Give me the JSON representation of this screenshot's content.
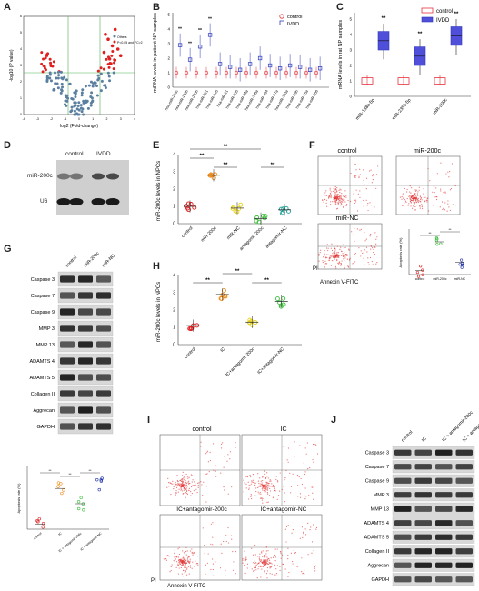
{
  "panels": {
    "A": {
      "letter": "A",
      "xlabel": "log2 (Fold-change)",
      "ylabel": "-log10 (P value)",
      "legend": [
        "Others",
        "P<0.05 and FC>2"
      ],
      "xticks": [
        "-4",
        "-3",
        "-2",
        "-1",
        "0",
        "1",
        "2",
        "3",
        "4"
      ],
      "yticks": [
        "0",
        "1",
        "2",
        "3",
        "4",
        "5",
        "6"
      ]
    },
    "B": {
      "letter": "B",
      "ylabel": "miRNA levels in patient NP samples",
      "legend": [
        "control",
        "IVDD"
      ],
      "yticks": [
        "0",
        "1",
        "2",
        "3",
        "4",
        "5"
      ],
      "categories": [
        "hsa-miR-200c",
        "hsa-miR-138b",
        "hsa-miR-235b",
        "hsa-miR-221",
        "hsa-miR-145",
        "hsa-miR-21",
        "hsa-miR-155",
        "hsa-miR-34a",
        "hsa-miR-146a",
        "hsa-miR-494",
        "hsa-miR-27a",
        "hsa-miR-133a",
        "hsa-miR-29b",
        "hsa-miR-15a",
        "hsa-miR-206"
      ],
      "stars": "**"
    },
    "C": {
      "letter": "C",
      "ylabel": "mRNA levels in rat NP samples",
      "legend": [
        "control",
        "IVDD"
      ],
      "categories": [
        "miR-138b-5p",
        "miR-2355-5p",
        "miR-200c"
      ],
      "yticks": [
        "0",
        "1",
        "2",
        "3",
        "4",
        "5"
      ],
      "stars": "**"
    },
    "D": {
      "letter": "D",
      "lanes": [
        "control",
        "IVDD"
      ],
      "rows": [
        "miR-200c",
        "U6"
      ]
    },
    "E": {
      "letter": "E",
      "ylabel": "miR-200c levels in NPCs",
      "categories": [
        "control",
        "miR-200c",
        "miR-NC",
        "antagomir-200c",
        "antagomir-NC"
      ],
      "yticks": [
        "0",
        "1",
        "2",
        "3",
        "4"
      ],
      "stars": "**"
    },
    "F": {
      "letter": "F",
      "titles": [
        "control",
        "miR-200c",
        "miR-NC"
      ],
      "xlabel": "Annexin V-FITC",
      "ylabel": "PI",
      "inset_ylabel": "Apoptosis rate (%)",
      "inset_categories": [
        "control",
        "miR-200c",
        "miR-NC"
      ],
      "stars": "**"
    },
    "G": {
      "letter": "G",
      "lanes": [
        "control",
        "miR-200c",
        "miR-NC"
      ],
      "rows": [
        "Caspase 3",
        "Caspase 7",
        "Caspase 9",
        "MMP 3",
        "MMP 13",
        "ADAMTS 4",
        "ADAMTS 5",
        "Collagen II",
        "Aggrecan",
        "GAPDH"
      ],
      "inset_ylabel": "Apoptosis rate (%)",
      "inset_categories": [
        "control",
        "IC",
        "IC + antagomir-200c",
        "IC + antagomir-NC"
      ],
      "stars": "**"
    },
    "H": {
      "letter": "H",
      "ylabel": "miR-200c levels in NPCs",
      "categories": [
        "control",
        "IC",
        "IC+antagomir-200c",
        "IC+antagomir-NC"
      ],
      "yticks": [
        "0",
        "1",
        "2",
        "3",
        "4"
      ],
      "stars": "**"
    },
    "I": {
      "letter": "I",
      "titles": [
        "control",
        "IC",
        "IC+antagomir-200c",
        "IC+antagomir-NC"
      ],
      "xlabel": "Annexin V-FITC",
      "ylabel": "PI"
    },
    "J": {
      "letter": "J",
      "lanes": [
        "control",
        "IC",
        "IC + antagomir-200c",
        "IC + antagomir-NC"
      ],
      "rows": [
        "Caspase 3",
        "Caspase 7",
        "Caspase 9",
        "MMP 3",
        "MMP 13",
        "ADAMTS 4",
        "ADAMTS 5",
        "Collagen II",
        "Aggrecan",
        "GAPDH"
      ]
    }
  },
  "chart_data": [
    {
      "type": "bar",
      "panel": "C",
      "categories": [
        "miR-138b-5p",
        "miR-2355-5p",
        "miR-200c"
      ],
      "series": [
        {
          "name": "control",
          "values": [
            1.0,
            1.0,
            1.0
          ]
        },
        {
          "name": "IVDD",
          "values": [
            3.6,
            2.6,
            3.9
          ]
        }
      ],
      "ylabel": "mRNA levels in rat NP samples",
      "ylim": [
        0,
        5
      ]
    },
    {
      "type": "scatter",
      "panel": "E",
      "categories": [
        "control",
        "miR-200c",
        "miR-NC",
        "antagomir-200c",
        "antagomir-NC"
      ],
      "values": [
        1.0,
        2.8,
        0.9,
        0.3,
        0.8
      ],
      "ylabel": "miR-200c levels in NPCs",
      "ylim": [
        0,
        4
      ]
    },
    {
      "type": "scatter",
      "panel": "H",
      "categories": [
        "control",
        "IC",
        "IC+antagomir-200c",
        "IC+antagomir-NC"
      ],
      "values": [
        1.1,
        2.9,
        1.3,
        2.5
      ],
      "ylabel": "miR-200c levels in NPCs",
      "ylim": [
        0,
        4
      ]
    }
  ],
  "colors": {
    "control": "#e8323c",
    "ivdd": "#2f3bb7",
    "red": "#e02020",
    "blue": "#2133a8",
    "orange": "#f08c1a",
    "yellow": "#e6d21a",
    "green": "#3fbf3f",
    "teal": "#22a39b",
    "purple": "#7a37c4",
    "scatter": "#5a7fa0",
    "flow": "#e23a3a"
  }
}
